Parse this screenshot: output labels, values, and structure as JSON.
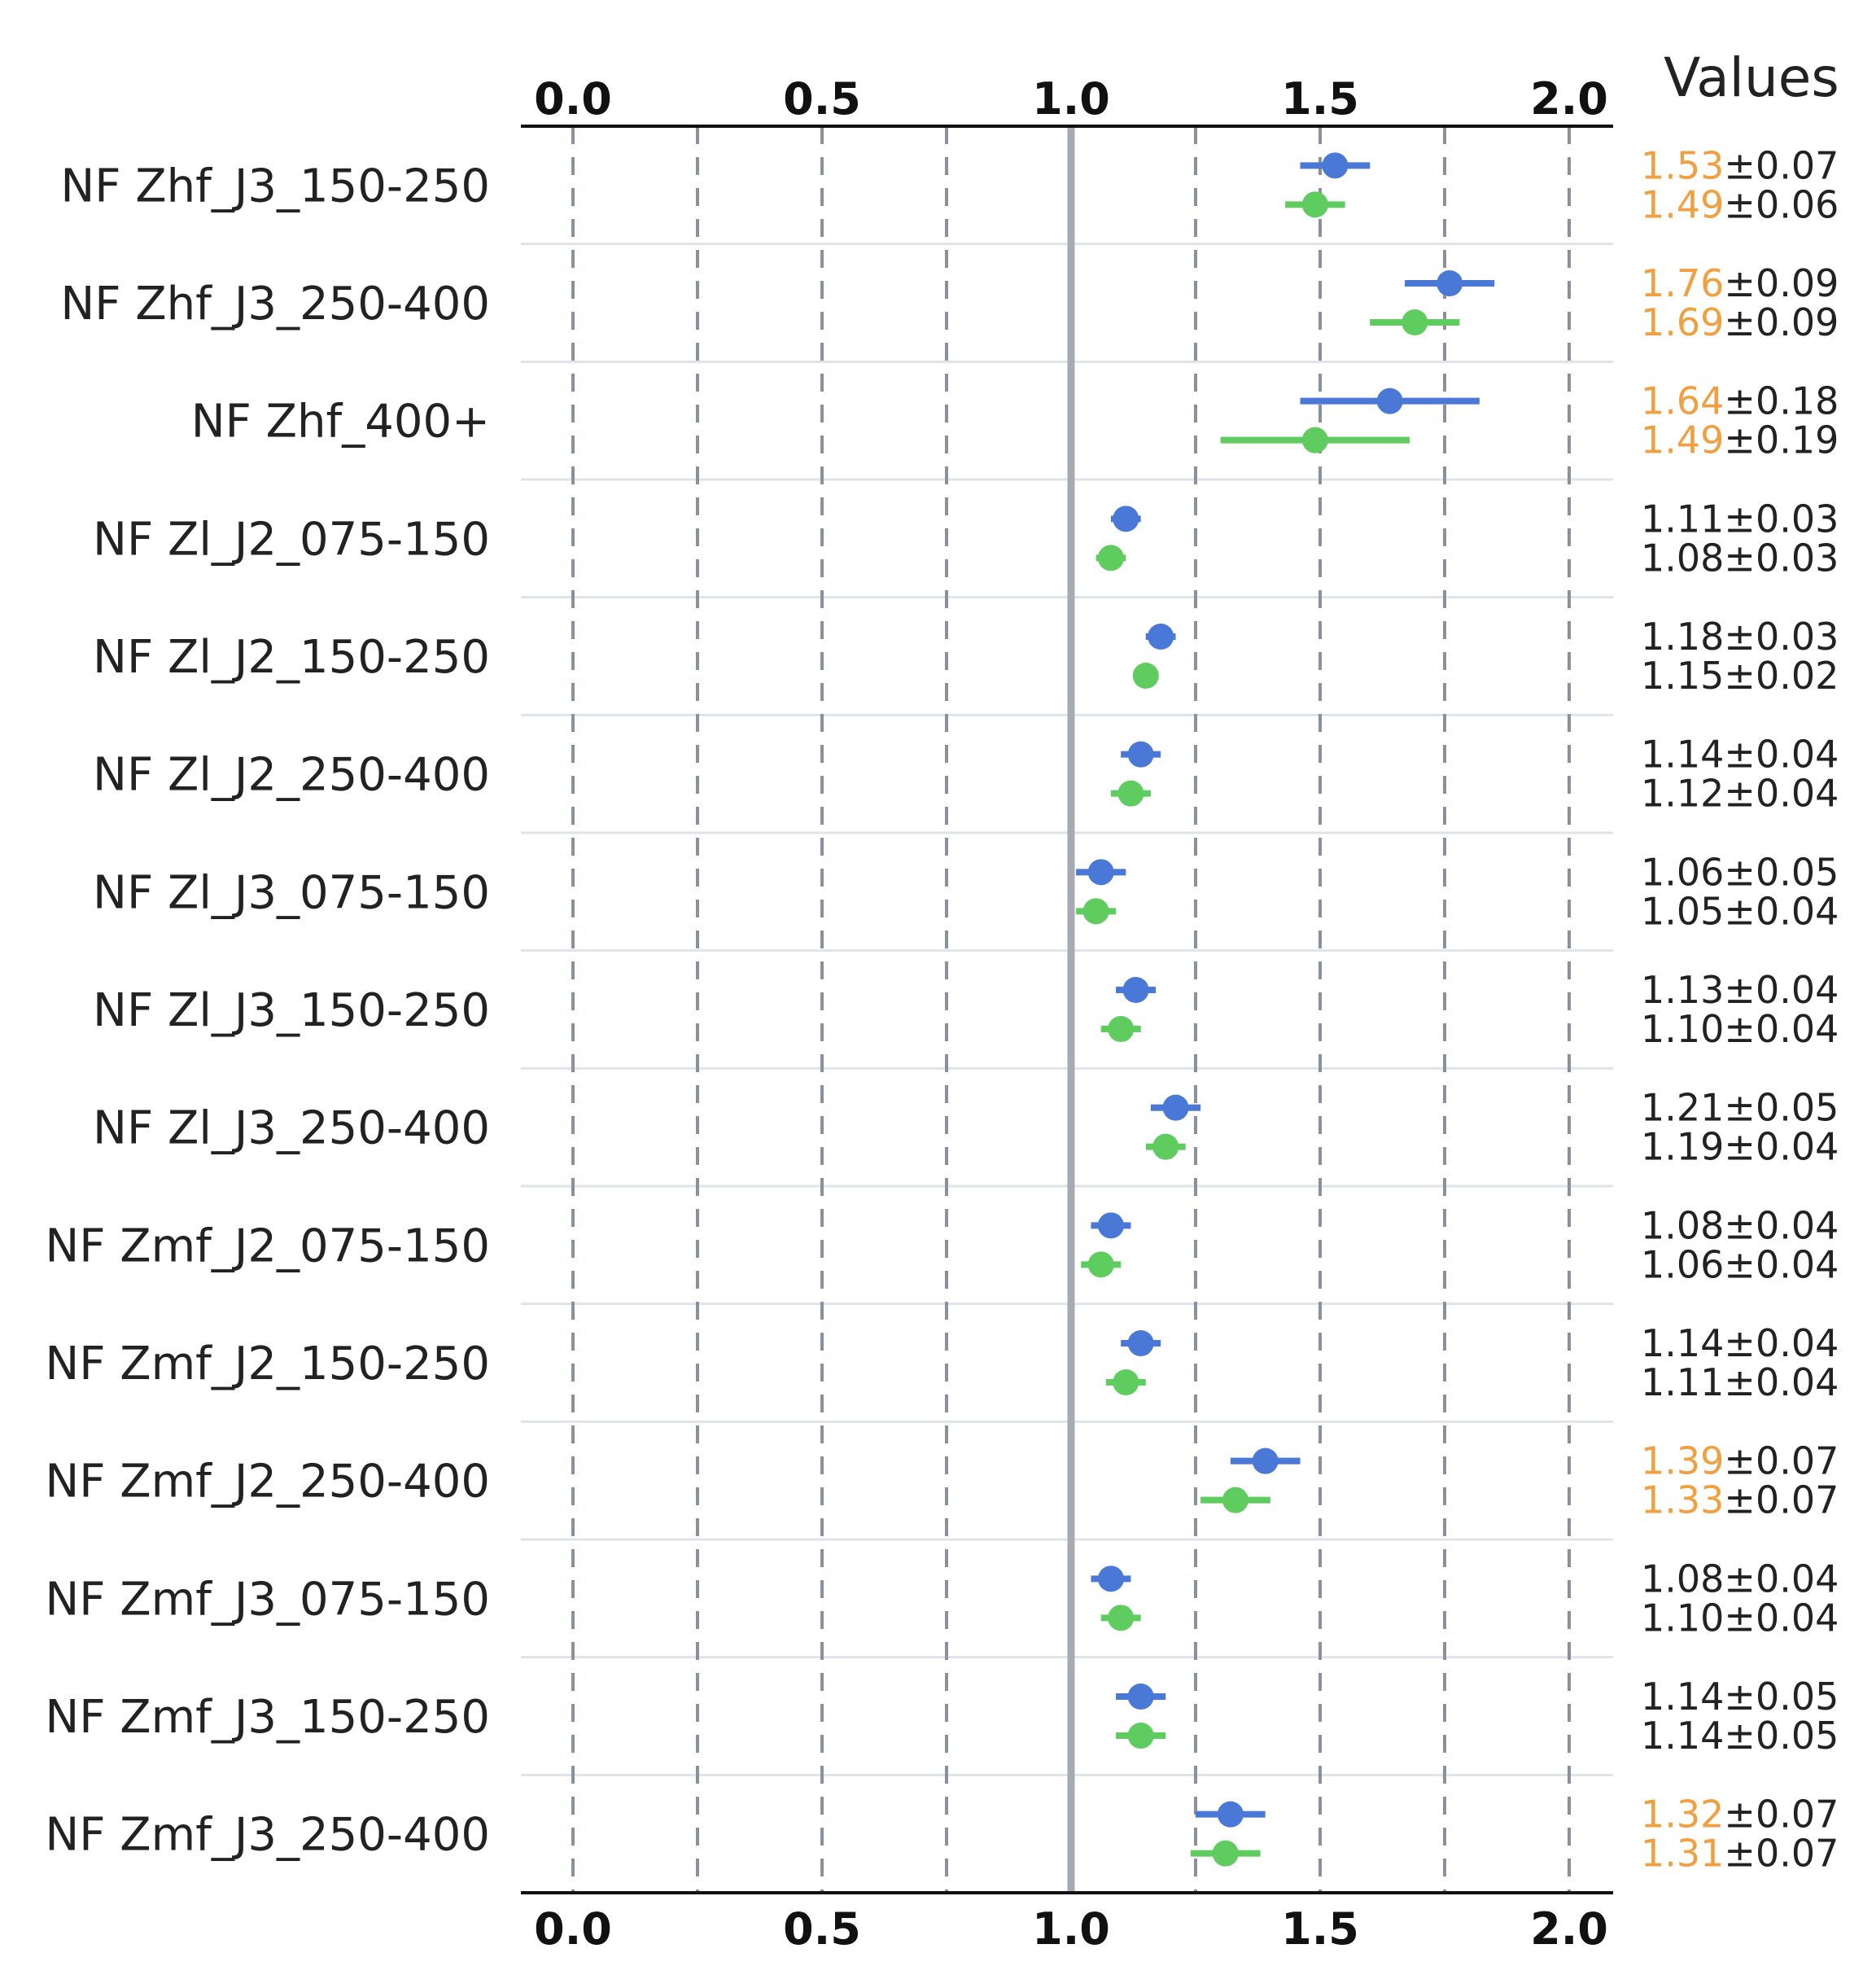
{
  "chart_data": {
    "type": "scatter",
    "subtype": "forest-plot-with-error-bars",
    "title": "",
    "xlabel": "",
    "ylabel": "",
    "xlim": [
      -0.1,
      2.1
    ],
    "xticks": [
      "0.0",
      "0.5",
      "1.0",
      "1.5",
      "2.0"
    ],
    "xticks_minor": [
      0.25,
      0.75,
      1.25,
      1.75
    ],
    "reference_line": 1.0,
    "grid": true,
    "values_column_title": "Values",
    "categories": [
      "NF Zhf_J3_150-250",
      "NF Zhf_J3_250-400",
      "NF Zhf_400+",
      "NF Zl_J2_075-150",
      "NF Zl_J2_150-250",
      "NF Zl_J2_250-400",
      "NF Zl_J3_075-150",
      "NF Zl_J3_150-250",
      "NF Zl_J3_250-400",
      "NF Zmf_J2_075-150",
      "NF Zmf_J2_150-250",
      "NF Zmf_J2_250-400",
      "NF Zmf_J3_075-150",
      "NF Zmf_J3_150-250",
      "NF Zmf_J3_250-400"
    ],
    "series": [
      {
        "color": "#4a78d6",
        "values": [
          1.53,
          1.76,
          1.64,
          1.11,
          1.18,
          1.14,
          1.06,
          1.13,
          1.21,
          1.08,
          1.14,
          1.39,
          1.08,
          1.14,
          1.32
        ],
        "errors": [
          0.07,
          0.09,
          0.18,
          0.03,
          0.03,
          0.04,
          0.05,
          0.04,
          0.05,
          0.04,
          0.04,
          0.07,
          0.04,
          0.05,
          0.07
        ],
        "value_labels": [
          "1.53",
          "1.76",
          "1.64",
          "1.11",
          "1.18",
          "1.14",
          "1.06",
          "1.13",
          "1.21",
          "1.08",
          "1.14",
          "1.39",
          "1.08",
          "1.14",
          "1.32"
        ],
        "error_labels": [
          "0.07",
          "0.09",
          "0.18",
          "0.03",
          "0.03",
          "0.04",
          "0.05",
          "0.04",
          "0.05",
          "0.04",
          "0.04",
          "0.07",
          "0.04",
          "0.05",
          "0.07"
        ]
      },
      {
        "color": "#5fcc5f",
        "values": [
          1.49,
          1.69,
          1.49,
          1.08,
          1.15,
          1.12,
          1.05,
          1.1,
          1.19,
          1.06,
          1.11,
          1.33,
          1.1,
          1.14,
          1.31
        ],
        "errors": [
          0.06,
          0.09,
          0.19,
          0.03,
          0.02,
          0.04,
          0.04,
          0.04,
          0.04,
          0.04,
          0.04,
          0.07,
          0.04,
          0.05,
          0.07
        ],
        "value_labels": [
          "1.49",
          "1.69",
          "1.49",
          "1.08",
          "1.15",
          "1.12",
          "1.05",
          "1.10",
          "1.19",
          "1.06",
          "1.11",
          "1.33",
          "1.10",
          "1.14",
          "1.31"
        ],
        "error_labels": [
          "0.06",
          "0.09",
          "0.19",
          "0.03",
          "0.02",
          "0.04",
          "0.04",
          "0.04",
          "0.04",
          "0.04",
          "0.04",
          "0.07",
          "0.04",
          "0.05",
          "0.07"
        ]
      }
    ],
    "highlight_color": "#f0a040",
    "plus_minus": "±"
  }
}
